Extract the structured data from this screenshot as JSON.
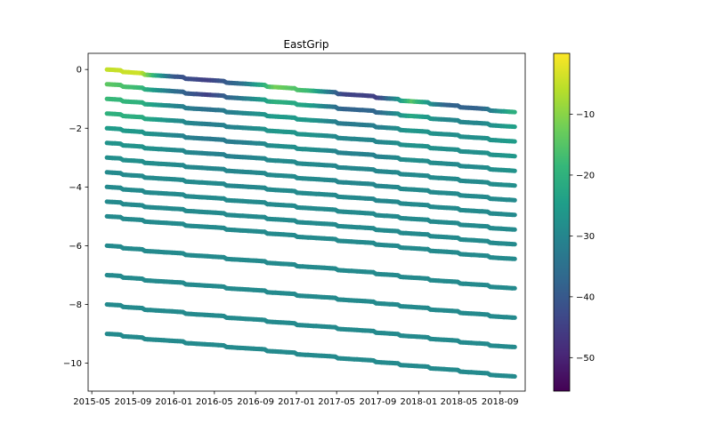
{
  "chart_data": {
    "type": "scatter",
    "title": "EastGrip",
    "xlabel": "",
    "ylabel": "",
    "xlim": [
      "2015-04-20",
      "2018-11-15"
    ],
    "ylim": [
      -10.95,
      0.55
    ],
    "x_ticks": [
      "2015-05",
      "2015-09",
      "2016-01",
      "2016-05",
      "2016-09",
      "2017-01",
      "2017-05",
      "2017-09",
      "2018-01",
      "2018-05",
      "2018-09"
    ],
    "y_ticks": [
      0,
      -2,
      -4,
      -6,
      -8,
      -10
    ],
    "grid": false,
    "legend": "none",
    "colormap": "viridis",
    "colors": {
      "viridis": [
        "#440154",
        "#482878",
        "#3e4989",
        "#31688e",
        "#26828e",
        "#1f9e89",
        "#35b779",
        "#6ece58",
        "#b5de2b",
        "#fde725"
      ]
    },
    "colorbar": {
      "range": [
        -55.5,
        0
      ],
      "ticks": [
        -50,
        -40,
        -30,
        -20,
        -10
      ]
    },
    "x_range": [
      "2015-06-15",
      "2018-10-15"
    ],
    "step_dates": [
      "2015-08-01",
      "2015-10-01",
      "2016-02-01",
      "2016-06-01",
      "2016-10-01",
      "2017-01-01",
      "2017-05-01",
      "2017-08-20",
      "2017-11-01",
      "2018-02-01",
      "2018-05-01",
      "2018-08-01"
    ],
    "series": [
      {
        "depth": 0,
        "start": 0,
        "end": -1.45,
        "temp": [
          -5,
          -4,
          -40,
          -45,
          -35,
          -12,
          -18,
          -44,
          -45,
          -15,
          -38,
          -38,
          -20
        ]
      },
      {
        "depth": -0.5,
        "start": -0.5,
        "end": -1.95,
        "temp": [
          -14,
          -18,
          -35,
          -45,
          -33,
          -20,
          -24,
          -38,
          -37,
          -22,
          -30,
          -30,
          -24
        ]
      },
      {
        "depth": -1,
        "start": -1,
        "end": -2.45,
        "temp": [
          -18,
          -20,
          -30,
          -35,
          -30,
          -25,
          -26,
          -33,
          -32,
          -26,
          -28,
          -28,
          -25
        ]
      },
      {
        "depth": -1.5,
        "start": -1.5,
        "end": -2.95,
        "temp": [
          -20,
          -21,
          -28,
          -32,
          -30,
          -26,
          -27,
          -30,
          -30,
          -27,
          -28,
          -28,
          -26
        ]
      },
      {
        "depth": -2,
        "start": -2,
        "end": -3.45,
        "temp": [
          -25,
          -26,
          -30,
          -33,
          -32,
          -28,
          -28,
          -31,
          -31,
          -28,
          -29,
          -29,
          -27
        ]
      },
      {
        "depth": -2.5,
        "start": -2.5,
        "end": -3.95,
        "temp": [
          -27,
          -27,
          -29,
          -31,
          -31,
          -29,
          -29,
          -30,
          -30,
          -29,
          -29,
          -29,
          -28
        ]
      },
      {
        "depth": -3,
        "start": -3,
        "end": -4.45,
        "temp": [
          -28,
          -28,
          -29,
          -30,
          -30,
          -29,
          -29,
          -30,
          -30,
          -29,
          -29,
          -29,
          -29
        ]
      },
      {
        "depth": -3.5,
        "start": -3.5,
        "end": -4.95,
        "temp": [
          -29,
          -29,
          -29,
          -29,
          -30,
          -29,
          -29,
          -29,
          -30,
          -29,
          -29,
          -29,
          -29
        ]
      },
      {
        "depth": -4,
        "start": -4,
        "end": -5.45,
        "temp": [
          -29,
          -29,
          -29,
          -29,
          -29,
          -29,
          -29,
          -29,
          -29,
          -29,
          -29,
          -29,
          -29
        ]
      },
      {
        "depth": -4.5,
        "start": -4.5,
        "end": -5.95,
        "temp": [
          -29,
          -29,
          -29,
          -29,
          -29,
          -29,
          -29,
          -29,
          -29,
          -29,
          -29,
          -29,
          -29
        ]
      },
      {
        "depth": -5,
        "start": -5,
        "end": -6.45,
        "temp": [
          -29,
          -29,
          -29,
          -29,
          -29,
          -29,
          -29,
          -29,
          -29,
          -29,
          -29,
          -29,
          -29
        ]
      },
      {
        "depth": -6,
        "start": -6,
        "end": -7.45,
        "temp": [
          -29,
          -29,
          -29,
          -29,
          -29,
          -29,
          -29,
          -29,
          -29,
          -29,
          -29,
          -29,
          -29
        ]
      },
      {
        "depth": -7,
        "start": -7,
        "end": -8.45,
        "temp": [
          -29,
          -29,
          -29,
          -29,
          -29,
          -29,
          -29,
          -29,
          -29,
          -29,
          -29,
          -29,
          -29
        ]
      },
      {
        "depth": -8,
        "start": -8,
        "end": -9.45,
        "temp": [
          -29,
          -29,
          -29,
          -29,
          -29,
          -29,
          -29,
          -29,
          -29,
          -29,
          -29,
          -29,
          -29
        ]
      },
      {
        "depth": -9,
        "start": -9,
        "end": -10.45,
        "temp": [
          -29,
          -29,
          -29,
          -29,
          -29,
          -29,
          -29,
          -29,
          -29,
          -29,
          -29,
          -29,
          -29
        ]
      }
    ]
  }
}
